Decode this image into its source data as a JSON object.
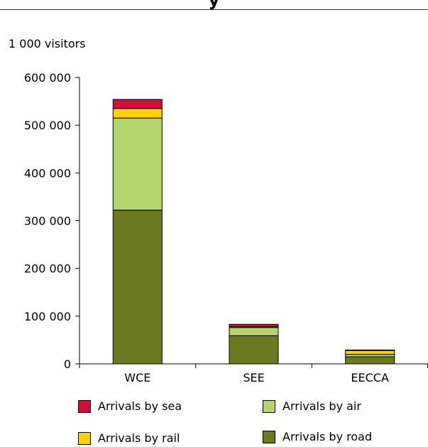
{
  "chart_data": {
    "type": "bar",
    "stacked": true,
    "title": "y",
    "ylabel": "1 000 visitors",
    "categories": [
      "WCE",
      "SEE",
      "EECCA"
    ],
    "series": [
      {
        "name": "Arrivals by road",
        "color": "#6B7A21",
        "values": [
          322000,
          59000,
          15000
        ]
      },
      {
        "name": "Arrivals by air",
        "color": "#B4D56E",
        "values": [
          193000,
          17000,
          5000
        ]
      },
      {
        "name": "Arrivals by rail",
        "color": "#FFD200",
        "values": [
          20000,
          2000,
          8000
        ]
      },
      {
        "name": "Arrivals by sea",
        "color": "#D0103A",
        "values": [
          19000,
          5000,
          1000
        ]
      }
    ],
    "ylim": [
      0,
      600000
    ],
    "yticks": [
      0,
      100000,
      200000,
      300000,
      400000,
      500000,
      600000
    ],
    "ytick_labels": [
      "0",
      "100 000",
      "200 000",
      "300 000",
      "400 000",
      "500 000",
      "600 000"
    ],
    "grid": false,
    "legend": {
      "position": "bottom",
      "entries": [
        {
          "label": "Arrivals by sea",
          "color": "#D0103A"
        },
        {
          "label": "Arrivals by air",
          "color": "#B4D56E"
        },
        {
          "label": "Arrivals by rail",
          "color": "#FFD200"
        },
        {
          "label": "Arrivals by road",
          "color": "#6B7A21"
        }
      ]
    }
  }
}
